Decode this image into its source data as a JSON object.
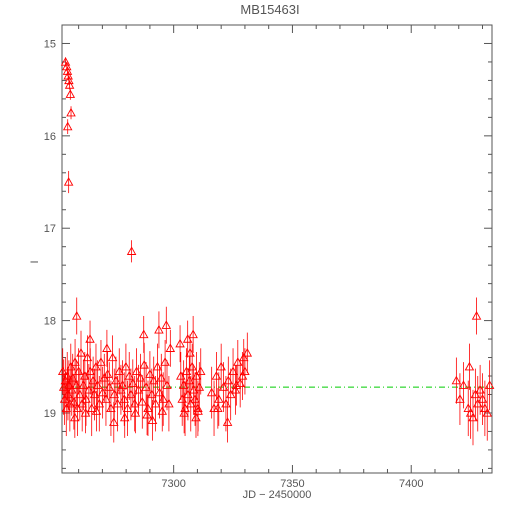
{
  "chart_data": {
    "type": "scatter",
    "title": "MB15463I",
    "xlabel": "JD − 2450000",
    "ylabel": "I",
    "xlim": [
      7253,
      7434
    ],
    "ylim": [
      19.65,
      14.8
    ],
    "y_inverted": true,
    "x_ticks": [
      7300,
      7350,
      7400
    ],
    "x_tick_labels": [
      "7300",
      "7350",
      "7400"
    ],
    "y_ticks": [
      15,
      16,
      17,
      18,
      19
    ],
    "y_tick_labels": [
      "15",
      "16",
      "17",
      "18",
      "19"
    ],
    "grid": false,
    "marker": "open-triangle",
    "colors": {
      "points": "#ff0000",
      "errorbars": "#ff0000",
      "model": "#00cc00",
      "axes": "#555555"
    },
    "model_line": {
      "style": "dash-dot",
      "x": [
        7253,
        7434
      ],
      "y": [
        18.72,
        18.72
      ]
    },
    "series": [
      {
        "x": [
          7254.5,
          7255.0,
          7255.3,
          7255.6,
          7255.9,
          7256.2,
          7256.5,
          7256.8,
          7255.4,
          7255.8,
          7253.3,
          7253.7,
          7254.1,
          7254.4,
          7254.8,
          7255.2,
          7255.5,
          7255.9,
          7256.3,
          7256.7,
          7257.1,
          7257.5,
          7258.0,
          7258.5,
          7259.0,
          7259.5,
          7260.0,
          7260.5,
          7261.0,
          7261.5,
          7262.0,
          7262.6,
          7263.1,
          7263.7,
          7264.3,
          7264.9,
          7265.5,
          7266.1,
          7266.7,
          7267.3,
          7268.0,
          7268.7,
          7269.4,
          7270.1,
          7270.8,
          7271.5,
          7272.2,
          7272.9,
          7273.6,
          7274.3,
          7275.0,
          7275.7,
          7276.4,
          7277.1,
          7277.8,
          7278.5,
          7279.2,
          7279.9,
          7280.6,
          7281.3,
          7282.0,
          7282.8,
          7283.6,
          7284.4,
          7285.2,
          7286.0,
          7286.8,
          7287.6,
          7288.4,
          7289.2,
          7290.0,
          7290.8,
          7291.6,
          7292.4,
          7293.2,
          7294.0,
          7294.8,
          7295.6,
          7296.4,
          7297.2,
          7298.0,
          7303.0,
          7303.6,
          7304.2,
          7304.8,
          7305.4,
          7306.0,
          7306.6,
          7307.2,
          7307.8,
          7308.4,
          7309.0,
          7309.6,
          7310.2,
          7310.8,
          7311.4,
          7316.0,
          7317.0,
          7318.0,
          7319.0,
          7320.0,
          7321.0,
          7322.0,
          7323.0,
          7324.0,
          7325.0,
          7326.0,
          7327.0,
          7328.0,
          7329.0,
          7330.0,
          7331.0,
          7282.3,
          7259.2,
          7264.8,
          7271.9,
          7287.4,
          7293.8,
          7296.9,
          7305.9,
          7308.2,
          7258.4,
          7262.9,
          7267.5,
          7274.8,
          7279.4,
          7283.9,
          7288.8,
          7291.1,
          7295.2,
          7304.4,
          7309.4,
          7310.3,
          7298.6,
          7302.7,
          7306.9,
          7318.6,
          7322.7,
          7326.4,
          7329.5,
          7419.0,
          7420.5,
          7422.0,
          7424.0,
          7425.0,
          7426.0,
          7427.0,
          7428.0,
          7429.0,
          7430.0,
          7431.0,
          7432.0,
          7433.0,
          7424.5,
          7427.5
        ],
        "y": [
          15.2,
          15.25,
          15.3,
          15.35,
          15.4,
          15.45,
          15.55,
          15.75,
          15.9,
          16.5,
          18.55,
          18.72,
          18.85,
          18.65,
          18.95,
          18.6,
          18.8,
          18.7,
          18.9,
          18.5,
          18.75,
          18.62,
          18.88,
          18.45,
          18.7,
          18.95,
          18.55,
          18.8,
          18.35,
          18.9,
          18.7,
          18.6,
          18.85,
          18.4,
          18.75,
          18.55,
          18.95,
          18.65,
          18.8,
          18.5,
          18.7,
          18.9,
          18.45,
          18.78,
          18.62,
          18.85,
          18.58,
          18.72,
          18.95,
          18.4,
          18.8,
          18.65,
          18.9,
          18.55,
          18.75,
          18.7,
          18.85,
          18.5,
          18.95,
          18.6,
          18.8,
          18.68,
          18.9,
          18.55,
          18.75,
          18.62,
          18.88,
          18.48,
          18.72,
          18.95,
          18.58,
          18.8,
          18.65,
          18.9,
          18.5,
          18.78,
          18.62,
          18.85,
          18.45,
          18.7,
          18.9,
          18.6,
          18.85,
          18.7,
          18.95,
          18.55,
          18.8,
          18.65,
          18.9,
          18.5,
          18.75,
          18.85,
          18.6,
          18.95,
          18.72,
          18.55,
          18.78,
          18.95,
          18.6,
          18.85,
          18.5,
          18.72,
          18.9,
          18.65,
          18.8,
          18.55,
          18.75,
          18.45,
          18.68,
          18.6,
          18.55,
          18.35,
          17.25,
          17.95,
          18.2,
          18.3,
          18.15,
          18.1,
          18.05,
          18.2,
          18.15,
          19.05,
          19.0,
          18.98,
          19.1,
          19.05,
          19.0,
          19.02,
          19.08,
          18.98,
          19.0,
          19.05,
          18.98,
          18.3,
          18.25,
          18.35,
          18.95,
          19.1,
          18.7,
          18.4,
          18.65,
          18.85,
          18.7,
          18.95,
          19.0,
          19.05,
          18.8,
          18.9,
          18.75,
          18.85,
          18.95,
          19.0,
          18.7,
          18.5,
          17.95
        ],
        "yerr": [
          0.05,
          0.05,
          0.05,
          0.05,
          0.05,
          0.05,
          0.06,
          0.07,
          0.08,
          0.12,
          0.25,
          0.3,
          0.28,
          0.25,
          0.3,
          0.26,
          0.28,
          0.27,
          0.3,
          0.25,
          0.28,
          0.26,
          0.3,
          0.25,
          0.27,
          0.3,
          0.25,
          0.28,
          0.24,
          0.3,
          0.27,
          0.26,
          0.29,
          0.24,
          0.28,
          0.25,
          0.3,
          0.26,
          0.28,
          0.25,
          0.27,
          0.3,
          0.24,
          0.28,
          0.26,
          0.29,
          0.25,
          0.27,
          0.3,
          0.24,
          0.28,
          0.26,
          0.3,
          0.25,
          0.27,
          0.27,
          0.29,
          0.25,
          0.3,
          0.26,
          0.28,
          0.26,
          0.3,
          0.25,
          0.27,
          0.26,
          0.29,
          0.24,
          0.27,
          0.3,
          0.25,
          0.28,
          0.26,
          0.3,
          0.25,
          0.28,
          0.26,
          0.29,
          0.24,
          0.27,
          0.3,
          0.26,
          0.29,
          0.27,
          0.3,
          0.25,
          0.28,
          0.26,
          0.3,
          0.25,
          0.27,
          0.29,
          0.26,
          0.3,
          0.27,
          0.25,
          0.28,
          0.3,
          0.26,
          0.29,
          0.25,
          0.27,
          0.3,
          0.26,
          0.28,
          0.25,
          0.27,
          0.24,
          0.26,
          0.26,
          0.25,
          0.22,
          0.12,
          0.2,
          0.2,
          0.2,
          0.2,
          0.2,
          0.2,
          0.2,
          0.2,
          0.22,
          0.22,
          0.22,
          0.22,
          0.22,
          0.22,
          0.22,
          0.22,
          0.22,
          0.22,
          0.22,
          0.22,
          0.2,
          0.2,
          0.2,
          0.22,
          0.22,
          0.22,
          0.2,
          0.25,
          0.28,
          0.25,
          0.3,
          0.28,
          0.3,
          0.28,
          0.3,
          0.27,
          0.28,
          0.3,
          0.3,
          0.27,
          0.25,
          0.2
        ]
      }
    ]
  }
}
